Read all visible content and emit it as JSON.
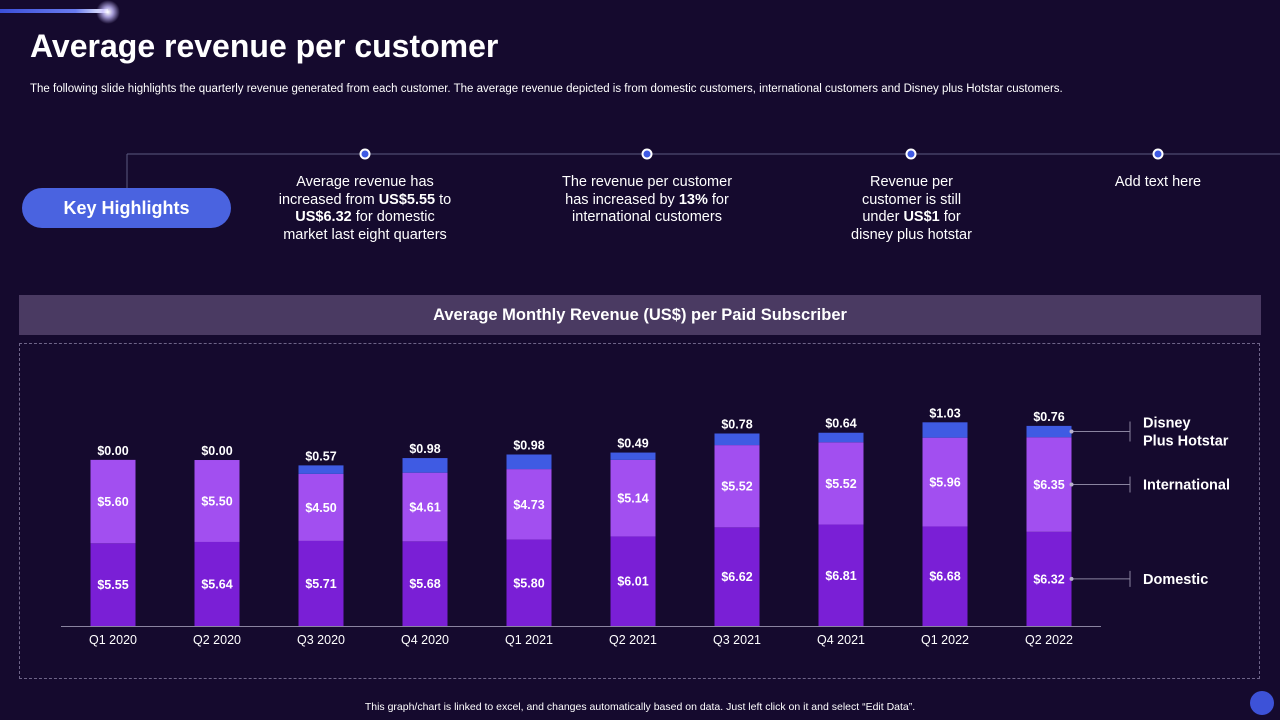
{
  "page": {
    "title": "Average revenue per customer",
    "subtitle": "The following slide highlights the quarterly revenue generated from each customer. The average revenue depicted is from domestic customers, international customers and Disney plus Hotstar customers.",
    "footer": "This graph/chart is linked to excel, and changes automatically based on data. Just left click on it and select “Edit Data”."
  },
  "highlights": {
    "button_label": "Key Highlights",
    "items": [
      {
        "pre": "Average revenue has increased from ",
        "b1": "US$5.55",
        "mid": " to ",
        "b2": "US$6.32",
        "post": " for domestic market last eight quarters"
      },
      {
        "pre": "The revenue per customer has increased by ",
        "b1": "13%",
        "mid": "",
        "b2": "",
        "post": " for international customers"
      },
      {
        "pre": "Revenue per customer is still under ",
        "b1": "US$1",
        "mid": "",
        "b2": "",
        "post": " for disney plus hotstar"
      },
      {
        "pre": "Add text here",
        "b1": "",
        "mid": "",
        "b2": "",
        "post": ""
      }
    ]
  },
  "chart_header": "Average Monthly Revenue (US$) per Paid Subscriber",
  "chart_data": {
    "type": "bar",
    "stacked": true,
    "title": "Average Monthly Revenue (US$) per Paid Subscriber",
    "categories": [
      "Q1 2020",
      "Q2 2020",
      "Q3 2020",
      "Q4 2020",
      "Q1 2021",
      "Q2 2021",
      "Q3 2021",
      "Q4 2021",
      "Q1 2022",
      "Q2 2022"
    ],
    "series": [
      {
        "name": "Domestic",
        "color": "#7a1fd6",
        "values": [
          5.55,
          5.64,
          5.71,
          5.68,
          5.8,
          6.01,
          6.62,
          6.81,
          6.68,
          6.32
        ],
        "labels": [
          "$5.55",
          "$5.64",
          "$5.71",
          "$5.68",
          "$5.80",
          "$6.01",
          "$6.62",
          "$6.81",
          "$6.68",
          "$6.32"
        ]
      },
      {
        "name": "International",
        "color": "#a24ff0",
        "values": [
          5.6,
          5.5,
          4.5,
          4.61,
          4.73,
          5.14,
          5.52,
          5.52,
          5.96,
          6.35
        ],
        "labels": [
          "$5.60",
          "$5.50",
          "$4.50",
          "$4.61",
          "$4.73",
          "$5.14",
          "$5.52",
          "$5.52",
          "$5.96",
          "$6.35"
        ]
      },
      {
        "name": "Disney Plus Hotstar",
        "color": "#3f5be3",
        "values": [
          0.0,
          0.0,
          0.57,
          0.98,
          0.98,
          0.49,
          0.78,
          0.64,
          1.03,
          0.76
        ],
        "labels": [
          "$0.00",
          "$0.00",
          "$0.57",
          "$0.98",
          "$0.98",
          "$0.49",
          "$0.78",
          "$0.64",
          "$1.03",
          "$0.76"
        ]
      }
    ],
    "legend": {
      "position": "right",
      "items": [
        {
          "series": "Disney Plus Hotstar",
          "lines": [
            "Disney",
            "Plus Hotstar"
          ]
        },
        {
          "series": "International",
          "lines": [
            "International"
          ]
        },
        {
          "series": "Domestic",
          "lines": [
            "Domestic"
          ]
        }
      ]
    },
    "xlabel": "",
    "ylabel": "",
    "ylim": [
      0,
      15
    ],
    "grid": false
  }
}
